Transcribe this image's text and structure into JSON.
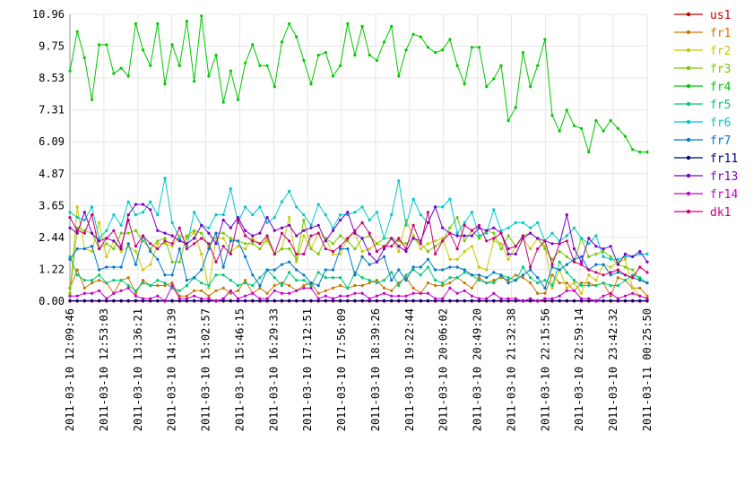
{
  "chart_data": {
    "type": "line",
    "ylim": [
      0,
      10.96
    ],
    "y_ticks": [
      "0.00",
      "1.22",
      "2.44",
      "3.65",
      "4.87",
      "6.09",
      "7.31",
      "8.53",
      "9.75",
      "10.96"
    ],
    "x_tick_labels": [
      "2011-03-10 12:09:46",
      "2011-03-10 12:53:03",
      "2011-03-10 13:36:21",
      "2011-03-10 14:19:39",
      "2011-03-10 15:02:57",
      "2011-03-10 15:46:15",
      "2011-03-10 16:29:33",
      "2011-03-10 17:12:51",
      "2011-03-10 17:56:09",
      "2011-03-10 18:39:26",
      "2011-03-10 19:22:44",
      "2011-03-10 20:06:02",
      "2011-03-10 20:49:20",
      "2011-03-10 21:32:38",
      "2011-03-10 22:15:56",
      "2011-03-10 22:59:14",
      "2011-03-10 23:42:32",
      "2011-03-11 00:25:50"
    ],
    "grid": true,
    "legend_position": "right",
    "series": [
      {
        "name": "us1",
        "color": "#c80000",
        "values": [
          0,
          0,
          0,
          0,
          0,
          0,
          0,
          0,
          0,
          0,
          0,
          0,
          0,
          0,
          0,
          0,
          0,
          0,
          0,
          0,
          0,
          0,
          0,
          0,
          0,
          0,
          0,
          0,
          0,
          0,
          0,
          0,
          0,
          0,
          0,
          0,
          0,
          0,
          0,
          0,
          0,
          0,
          0,
          0,
          0,
          0,
          0,
          0,
          0,
          0,
          0,
          0,
          0,
          0,
          0,
          0,
          0,
          0,
          0,
          0,
          0,
          0,
          0,
          0,
          0,
          0,
          0,
          0,
          0,
          0,
          0,
          0,
          0,
          0,
          0,
          0,
          0,
          0,
          0,
          0
        ]
      },
      {
        "name": "fr1",
        "color": "#c87800",
        "values": [
          0.5,
          1.2,
          0.5,
          0.7,
          0.8,
          0.7,
          0.3,
          0.8,
          0.9,
          0.3,
          0.8,
          0.6,
          0.6,
          0.6,
          0.7,
          0.2,
          0.2,
          0.4,
          0.4,
          0.2,
          0.4,
          0.5,
          0.3,
          0.4,
          0.8,
          0.3,
          0.5,
          0.3,
          0.6,
          0.7,
          0.6,
          0.4,
          0.6,
          0.7,
          0.3,
          0.4,
          0.5,
          0.6,
          0.5,
          0.6,
          0.6,
          0.7,
          0.8,
          0.5,
          0.4,
          0.7,
          0.9,
          0.5,
          0.3,
          0.7,
          0.6,
          0.6,
          0.7,
          0.9,
          0.7,
          0.5,
          0.9,
          0.7,
          0.8,
          0.9,
          0.8,
          1.0,
          0.9,
          0.7,
          0.3,
          0.3,
          1.0,
          0.7,
          0.7,
          0.4,
          0.7,
          0.7,
          0.6,
          0.7,
          0.2,
          0.9,
          0.8,
          0.5,
          0.5,
          0.2
        ]
      },
      {
        "name": "fr2",
        "color": "#c8c800",
        "values": [
          0.3,
          3.6,
          2.0,
          1.9,
          3.0,
          1.7,
          2.3,
          1.9,
          2.1,
          1.9,
          1.2,
          1.4,
          2.2,
          2.2,
          2.1,
          2.5,
          2.4,
          2.6,
          1.8,
          0.5,
          2.4,
          2.4,
          1.9,
          2.1,
          2.0,
          2.4,
          2.2,
          2.3,
          1.8,
          2.0,
          3.2,
          1.5,
          2.5,
          2.0,
          2.6,
          2.4,
          1.8,
          1.8,
          2.4,
          2.6,
          1.9,
          2.0,
          2.2,
          2.1,
          2.4,
          1.9,
          3.1,
          2.5,
          2.0,
          2.2,
          2.3,
          2.4,
          1.6,
          1.6,
          1.9,
          2.1,
          1.3,
          1.2,
          2.3,
          2.2,
          1.6,
          2.1,
          2.4,
          2.0,
          2.4,
          2.1,
          0.5,
          1.2,
          0.5,
          0.7,
          0.3,
          1.0,
          0.8,
          1.4,
          1.3,
          1.5,
          1.6,
          0.5,
          0.2,
          0.1
        ]
      },
      {
        "name": "fr3",
        "color": "#78c800",
        "values": [
          0.3,
          2.8,
          2.7,
          2.6,
          2.0,
          2.2,
          2.0,
          2.6,
          2.6,
          2.7,
          2.3,
          2.0,
          2.3,
          2.4,
          1.5,
          1.5,
          2.5,
          2.7,
          2.6,
          2.1,
          2.6,
          2.6,
          2.4,
          2.3,
          2.2,
          2.2,
          2.0,
          2.4,
          1.8,
          2.0,
          2.0,
          1.6,
          3.1,
          2.0,
          1.8,
          2.4,
          2.2,
          2.5,
          2.3,
          2.0,
          2.4,
          2.5,
          2.2,
          2.4,
          2.4,
          2.3,
          2.2,
          2.4,
          2.2,
          1.9,
          2.1,
          2.3,
          2.8,
          3.2,
          2.3,
          2.7,
          2.4,
          2.7,
          2.6,
          2.0,
          2.5,
          2.1,
          2.5,
          2.6,
          2.4,
          2.0,
          1.6,
          1.9,
          1.7,
          1.5,
          2.4,
          1.7,
          1.8,
          1.9,
          1.7,
          1.4,
          1.3,
          1.2,
          0.8,
          0.7
        ]
      },
      {
        "name": "fr4",
        "color": "#00c800",
        "values": [
          8.8,
          10.3,
          9.3,
          7.7,
          9.8,
          9.8,
          8.7,
          8.9,
          8.6,
          10.6,
          9.6,
          9.0,
          10.6,
          8.3,
          9.8,
          9.0,
          10.7,
          8.4,
          10.9,
          8.6,
          9.4,
          7.6,
          8.8,
          7.7,
          9.1,
          9.8,
          9.0,
          9.0,
          8.2,
          9.9,
          10.6,
          10.1,
          9.2,
          8.3,
          9.4,
          9.5,
          8.6,
          9.0,
          10.6,
          9.4,
          10.5,
          9.4,
          9.2,
          9.9,
          10.5,
          8.6,
          9.6,
          10.2,
          10.1,
          9.7,
          9.5,
          9.6,
          10.0,
          9.0,
          8.3,
          9.7,
          9.7,
          8.2,
          8.5,
          9.0,
          6.9,
          7.4,
          9.5,
          8.2,
          9.0,
          10.0,
          7.1,
          6.5,
          7.3,
          6.7,
          6.6,
          5.7,
          6.9,
          6.5,
          6.9,
          6.6,
          6.3,
          5.8,
          5.7,
          5.7
        ]
      },
      {
        "name": "fr5",
        "color": "#00c878",
        "values": [
          1.7,
          1.0,
          0.8,
          0.8,
          1.0,
          0.7,
          0.8,
          0.8,
          0.6,
          0.4,
          0.7,
          0.6,
          0.8,
          0.7,
          0.5,
          0.4,
          0.6,
          0.9,
          0.7,
          0.6,
          1.0,
          1.0,
          0.8,
          0.6,
          0.7,
          0.6,
          0.9,
          1.2,
          0.9,
          0.6,
          1.1,
          0.8,
          0.8,
          0.6,
          1.1,
          0.9,
          0.9,
          0.9,
          0.5,
          1.1,
          0.9,
          0.8,
          0.7,
          0.8,
          1.1,
          0.6,
          1.0,
          1.2,
          1.0,
          1.3,
          0.8,
          0.7,
          0.9,
          0.9,
          1.1,
          1.0,
          0.8,
          0.7,
          0.7,
          1.0,
          0.9,
          0.8,
          1.3,
          0.9,
          0.7,
          0.8,
          0.6,
          1.5,
          1.1,
          0.8,
          0.6,
          0.6,
          0.6,
          0.7,
          0.6,
          0.6,
          0.8,
          1.0,
          0.9,
          0.7
        ]
      },
      {
        "name": "fr6",
        "color": "#00c8c8",
        "values": [
          3.4,
          3.2,
          3.1,
          3.6,
          2.4,
          2.7,
          3.3,
          2.9,
          3.8,
          3.3,
          3.4,
          3.8,
          3.3,
          4.7,
          3.0,
          2.4,
          2.1,
          3.4,
          2.9,
          2.8,
          3.3,
          3.3,
          4.3,
          3.0,
          3.6,
          3.3,
          3.6,
          3.0,
          3.2,
          3.8,
          4.2,
          3.6,
          3.3,
          2.9,
          3.7,
          3.3,
          2.8,
          3.3,
          3.3,
          3.4,
          3.6,
          3.1,
          3.4,
          2.4,
          3.3,
          4.6,
          2.9,
          3.9,
          3.3,
          3.0,
          3.6,
          3.6,
          3.9,
          2.6,
          3.0,
          3.4,
          2.5,
          2.6,
          3.5,
          2.7,
          2.8,
          3.0,
          3.0,
          2.8,
          3.0,
          2.3,
          2.6,
          2.3,
          2.5,
          2.8,
          2.4,
          2.2,
          2.5,
          1.7,
          1.6,
          1.6,
          1.7,
          1.7,
          1.8,
          1.8
        ]
      },
      {
        "name": "fr7",
        "color": "#0078c8",
        "values": [
          1.6,
          2.0,
          2.0,
          2.1,
          1.2,
          1.3,
          1.3,
          1.3,
          2.2,
          1.4,
          2.5,
          1.9,
          1.6,
          1.0,
          1.0,
          2.0,
          0.8,
          0.9,
          1.2,
          2.0,
          2.6,
          1.3,
          2.3,
          2.3,
          1.7,
          1.0,
          0.6,
          1.2,
          1.2,
          1.4,
          1.5,
          1.2,
          1.0,
          0.7,
          0.6,
          1.2,
          1.2,
          2.0,
          2.0,
          1.0,
          1.7,
          1.4,
          1.5,
          1.7,
          0.8,
          1.2,
          0.8,
          1.3,
          1.3,
          1.6,
          1.2,
          1.2,
          1.3,
          1.3,
          1.2,
          1.0,
          1.0,
          0.9,
          1.1,
          1.0,
          0.7,
          0.8,
          1.0,
          1.2,
          0.9,
          0.5,
          1.3,
          1.2,
          1.4,
          1.6,
          1.7,
          1.2,
          1.4,
          1.4,
          1.0,
          1.1,
          1.0,
          0.9,
          0.8,
          0.7
        ]
      },
      {
        "name": "fr11",
        "color": "#000078",
        "values": [
          0.02,
          0.02,
          0.02,
          0.02,
          0.02,
          0.02,
          0.02,
          0.02,
          0.02,
          0.02,
          0.02,
          0.02,
          0.02,
          0.02,
          0.02,
          0.02,
          0.02,
          0.02,
          0.02,
          0.02,
          0.02,
          0.02,
          0.02,
          0.02,
          0.02,
          0.02,
          0.02,
          0.02,
          0.02,
          0.02,
          0.02,
          0.02,
          0.02,
          0.02,
          0.02,
          0.02,
          0.02,
          0.02,
          0.02,
          0.02,
          0.02,
          0.02,
          0.02,
          0.02,
          0.02,
          0.02,
          0.02,
          0.02,
          0.02,
          0.02,
          0.02,
          0.02,
          0.02,
          0.02,
          0.02,
          0.02,
          0.02,
          0.02,
          0.02,
          0.02,
          0.02,
          0.02,
          0.02,
          0.02,
          0.02,
          0.02,
          0.02,
          0.02,
          0.02,
          0.02,
          0.02,
          0.02,
          0.02,
          0.02,
          0.02,
          0.02,
          0.02,
          0.02,
          0.02,
          0.02
        ]
      },
      {
        "name": "fr13",
        "color": "#7800c8",
        "values": [
          2.8,
          2.6,
          3.4,
          2.6,
          2.3,
          2.4,
          2.3,
          2.0,
          3.3,
          3.7,
          3.7,
          3.5,
          2.7,
          2.6,
          2.5,
          2.3,
          2.2,
          2.4,
          2.9,
          2.6,
          2.2,
          3.1,
          2.8,
          3.2,
          2.7,
          2.5,
          2.6,
          3.2,
          2.7,
          2.8,
          2.9,
          2.5,
          2.7,
          2.8,
          2.9,
          2.3,
          2.7,
          3.1,
          3.4,
          2.6,
          2.4,
          1.8,
          1.5,
          2.0,
          2.4,
          2.1,
          1.9,
          2.4,
          2.3,
          3.0,
          3.6,
          2.8,
          2.6,
          2.5,
          2.5,
          2.5,
          2.8,
          2.7,
          2.8,
          2.6,
          1.8,
          1.8,
          2.4,
          2.6,
          2.4,
          2.3,
          2.2,
          2.2,
          3.3,
          2.0,
          1.5,
          2.4,
          2.1,
          2.0,
          2.1,
          1.4,
          1.8,
          1.7,
          1.9,
          1.5
        ]
      },
      {
        "name": "fr14",
        "color": "#c800c8",
        "values": [
          0.2,
          0.2,
          0.3,
          0.3,
          0.4,
          0.1,
          0.3,
          0.4,
          0.5,
          0.2,
          0.1,
          0.1,
          0.2,
          0.0,
          0.6,
          0.1,
          0.1,
          0.2,
          0.1,
          0.1,
          0.0,
          0.1,
          0.4,
          0.1,
          0.2,
          0.3,
          0.1,
          0.1,
          0.4,
          0.3,
          0.3,
          0.4,
          0.5,
          0.5,
          0.1,
          0.2,
          0.1,
          0.2,
          0.2,
          0.3,
          0.3,
          0.1,
          0.2,
          0.3,
          0.2,
          0.2,
          0.2,
          0.3,
          0.3,
          0.3,
          0.1,
          0.1,
          0.5,
          0.3,
          0.4,
          0.2,
          0.1,
          0.1,
          0.3,
          0.1,
          0.1,
          0.1,
          0.0,
          0.1,
          0.0,
          0.1,
          0.1,
          0.2,
          0.4,
          0.4,
          0.1,
          0.1,
          0.0,
          0.2,
          0.3,
          0.1,
          0.2,
          0.3,
          0.2,
          0.1
        ]
      },
      {
        "name": "dk1",
        "color": "#c80078",
        "values": [
          3.2,
          2.7,
          2.6,
          3.3,
          2.0,
          2.4,
          2.7,
          2.1,
          3.1,
          2.1,
          2.5,
          2.2,
          2.0,
          2.3,
          2.2,
          2.8,
          2.0,
          2.2,
          2.4,
          2.2,
          1.5,
          2.1,
          1.8,
          3.1,
          2.5,
          2.3,
          2.2,
          2.5,
          1.8,
          2.6,
          2.3,
          1.8,
          1.8,
          2.5,
          2.6,
          2.0,
          1.9,
          2.1,
          2.4,
          2.7,
          3.0,
          2.6,
          1.9,
          2.1,
          2.1,
          2.4,
          2.0,
          2.9,
          2.2,
          3.4,
          1.8,
          2.3,
          2.6,
          2.0,
          2.9,
          2.7,
          2.9,
          2.3,
          2.4,
          2.6,
          2.0,
          2.1,
          2.5,
          1.3,
          2.0,
          2.3,
          1.4,
          2.2,
          2.3,
          1.5,
          1.4,
          1.2,
          1.1,
          1.0,
          1.1,
          1.2,
          1.0,
          0.9,
          1.3,
          1.1
        ]
      }
    ]
  }
}
